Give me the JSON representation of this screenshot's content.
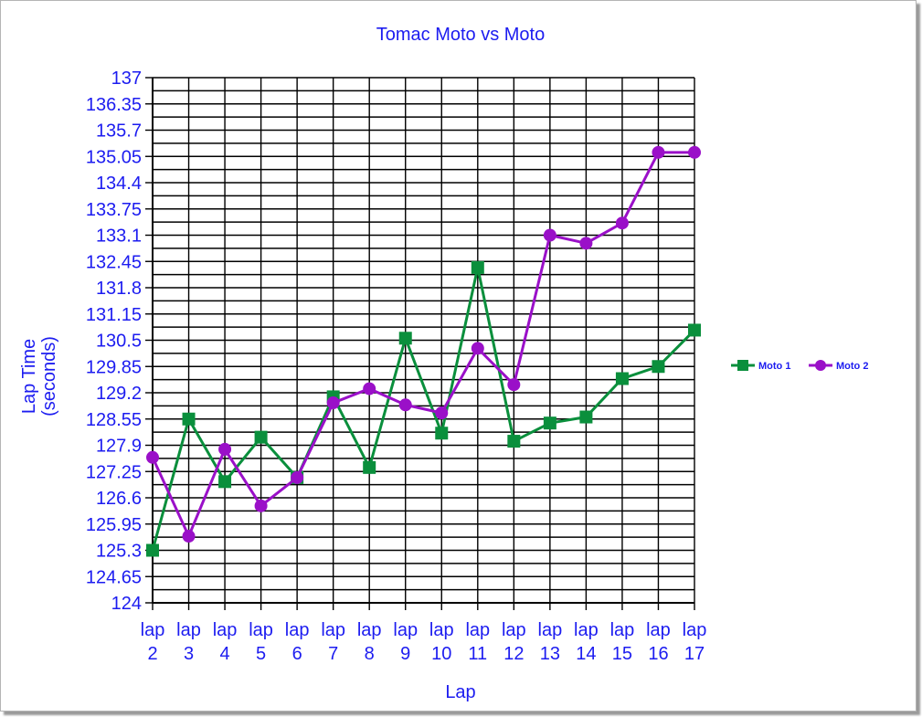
{
  "chart_data": {
    "type": "line",
    "title": "Tomac Moto vs Moto",
    "xlabel": "Lap",
    "ylabel_lines": [
      "Lap Time",
      "(seconds)"
    ],
    "categories": [
      [
        "lap",
        "2"
      ],
      [
        "lap",
        "3"
      ],
      [
        "lap",
        "4"
      ],
      [
        "lap",
        "5"
      ],
      [
        "lap",
        "6"
      ],
      [
        "lap",
        "7"
      ],
      [
        "lap",
        "8"
      ],
      [
        "lap",
        "9"
      ],
      [
        "lap",
        "10"
      ],
      [
        "lap",
        "11"
      ],
      [
        "lap",
        "12"
      ],
      [
        "lap",
        "13"
      ],
      [
        "lap",
        "14"
      ],
      [
        "lap",
        "15"
      ],
      [
        "lap",
        "16"
      ],
      [
        "lap",
        "17"
      ]
    ],
    "ylim": [
      124,
      137
    ],
    "yticks": [
      "124",
      "124.65",
      "125.3",
      "125.95",
      "126.6",
      "127.25",
      "127.9",
      "128.55",
      "129.2",
      "129.85",
      "130.5",
      "131.15",
      "131.8",
      "132.45",
      "133.1",
      "133.75",
      "134.4",
      "135.05",
      "135.7",
      "136.35",
      "137"
    ],
    "grid": true,
    "legend_position": "right",
    "series": [
      {
        "name": "Moto 1",
        "color": "#0a8f3c",
        "marker": "square",
        "values": [
          125.3,
          128.55,
          127.0,
          128.1,
          127.1,
          129.1,
          127.35,
          130.55,
          128.2,
          132.3,
          128.0,
          128.45,
          128.6,
          129.55,
          129.85,
          130.75
        ]
      },
      {
        "name": "Moto 2",
        "color": "#9a10c8",
        "marker": "circle",
        "values": [
          127.6,
          125.65,
          127.8,
          126.4,
          127.1,
          128.95,
          129.3,
          128.9,
          128.7,
          130.3,
          129.4,
          133.1,
          132.9,
          133.4,
          135.15,
          135.15
        ]
      }
    ]
  }
}
